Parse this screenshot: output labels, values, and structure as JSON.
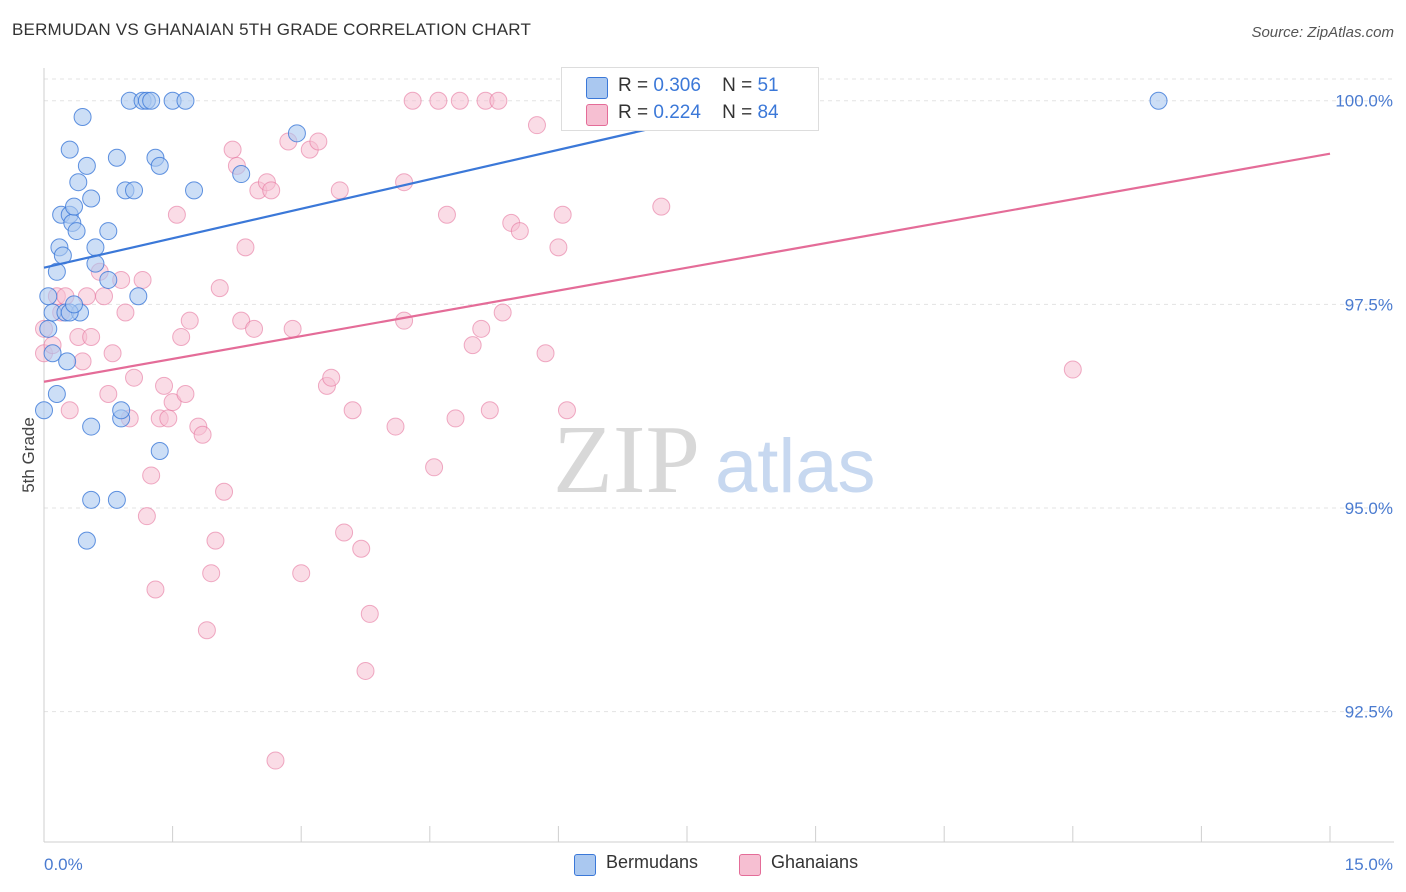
{
  "header": {
    "title": "BERMUDAN VS GHANAIAN 5TH GRADE CORRELATION CHART",
    "source": "Source: ZipAtlas.com"
  },
  "watermark": {
    "zip": "ZIP",
    "atlas": "atlas"
  },
  "colors": {
    "blue": "#3b78d8",
    "blue_fill": "#aac8f0",
    "pink": "#e46c98",
    "pink_fill": "#f6bfd2"
  },
  "stats_legend": [
    {
      "r_label": "R =",
      "r_value": "0.306",
      "n_label": "N =",
      "n_value": "51"
    },
    {
      "r_label": "R =",
      "r_value": "0.224",
      "n_label": "N =",
      "n_value": "84"
    }
  ],
  "chart_data": {
    "type": "scatter",
    "title": "BERMUDAN VS GHANAIAN 5TH GRADE CORRELATION CHART",
    "xlabel": "",
    "ylabel": "5th Grade",
    "xlim": [
      0,
      15
    ],
    "ylim": [
      90.9,
      100.5
    ],
    "x_tick_labels": [
      "0.0%",
      "15.0%"
    ],
    "y_ticks": [
      92.5,
      95.0,
      97.5,
      100.0
    ],
    "y_tick_labels": [
      "92.5%",
      "95.0%",
      "97.5%",
      "100.0%"
    ],
    "grid": true,
    "legend_position": "bottom",
    "series": [
      {
        "name": "Bermudans",
        "color": "#3b78d8",
        "trend": {
          "x": [
            0.0,
            8.5
          ],
          "y": [
            97.95,
            100.0
          ]
        },
        "points": [
          [
            0.05,
            97.6
          ],
          [
            0.05,
            97.2
          ],
          [
            0.1,
            97.4
          ],
          [
            0.1,
            96.9
          ],
          [
            0.15,
            97.9
          ],
          [
            0.15,
            96.4
          ],
          [
            0.18,
            98.2
          ],
          [
            0.2,
            98.6
          ],
          [
            0.22,
            98.1
          ],
          [
            0.25,
            97.4
          ],
          [
            0.27,
            96.8
          ],
          [
            0.3,
            99.4
          ],
          [
            0.3,
            98.6
          ],
          [
            0.33,
            98.5
          ],
          [
            0.35,
            98.7
          ],
          [
            0.38,
            98.4
          ],
          [
            0.4,
            99.0
          ],
          [
            0.42,
            97.4
          ],
          [
            0.45,
            99.8
          ],
          [
            0.5,
            99.2
          ],
          [
            0.55,
            98.8
          ],
          [
            0.6,
            98.2
          ],
          [
            0.6,
            98.0
          ],
          [
            0.75,
            98.4
          ],
          [
            0.75,
            97.8
          ],
          [
            0.85,
            99.3
          ],
          [
            0.9,
            96.1
          ],
          [
            0.95,
            98.9
          ],
          [
            1.0,
            100.0
          ],
          [
            1.05,
            98.9
          ],
          [
            1.1,
            97.6
          ],
          [
            1.15,
            100.0
          ],
          [
            1.2,
            100.0
          ],
          [
            1.25,
            100.0
          ],
          [
            1.3,
            99.3
          ],
          [
            1.35,
            99.2
          ],
          [
            1.35,
            95.7
          ],
          [
            1.5,
            100.0
          ],
          [
            1.65,
            100.0
          ],
          [
            1.75,
            98.9
          ],
          [
            2.3,
            99.1
          ],
          [
            2.95,
            99.6
          ],
          [
            0.55,
            96.0
          ],
          [
            0.9,
            96.2
          ],
          [
            0.5,
            94.6
          ],
          [
            0.55,
            95.1
          ],
          [
            0.85,
            95.1
          ],
          [
            0.0,
            96.2
          ],
          [
            0.3,
            97.4
          ],
          [
            0.35,
            97.5
          ],
          [
            13.0,
            100.0
          ]
        ]
      },
      {
        "name": "Ghanaians",
        "color": "#e46c98",
        "trend": {
          "x": [
            0.0,
            15.0
          ],
          "y": [
            96.55,
            99.35
          ]
        },
        "points": [
          [
            0.0,
            97.2
          ],
          [
            0.0,
            96.9
          ],
          [
            0.1,
            97.0
          ],
          [
            0.15,
            97.6
          ],
          [
            0.2,
            97.4
          ],
          [
            0.25,
            97.6
          ],
          [
            0.3,
            96.2
          ],
          [
            0.4,
            97.1
          ],
          [
            0.45,
            96.8
          ],
          [
            0.5,
            97.6
          ],
          [
            0.55,
            97.1
          ],
          [
            0.65,
            97.9
          ],
          [
            0.7,
            97.6
          ],
          [
            0.75,
            96.4
          ],
          [
            0.8,
            96.9
          ],
          [
            0.9,
            97.8
          ],
          [
            0.95,
            97.4
          ],
          [
            1.0,
            96.1
          ],
          [
            1.05,
            96.6
          ],
          [
            1.15,
            97.8
          ],
          [
            1.2,
            94.9
          ],
          [
            1.25,
            95.4
          ],
          [
            1.3,
            94.0
          ],
          [
            1.35,
            96.1
          ],
          [
            1.4,
            96.5
          ],
          [
            1.45,
            96.1
          ],
          [
            1.5,
            96.3
          ],
          [
            1.55,
            98.6
          ],
          [
            1.6,
            97.1
          ],
          [
            1.65,
            96.4
          ],
          [
            1.7,
            97.3
          ],
          [
            1.8,
            96.0
          ],
          [
            1.85,
            95.9
          ],
          [
            1.9,
            93.5
          ],
          [
            1.95,
            94.2
          ],
          [
            2.0,
            94.6
          ],
          [
            2.05,
            97.7
          ],
          [
            2.1,
            95.2
          ],
          [
            2.2,
            99.4
          ],
          [
            2.25,
            99.2
          ],
          [
            2.3,
            97.3
          ],
          [
            2.35,
            98.2
          ],
          [
            2.45,
            97.2
          ],
          [
            2.5,
            98.9
          ],
          [
            2.6,
            99.0
          ],
          [
            2.65,
            98.9
          ],
          [
            2.7,
            91.9
          ],
          [
            2.85,
            99.5
          ],
          [
            2.9,
            97.2
          ],
          [
            3.0,
            94.2
          ],
          [
            3.1,
            99.4
          ],
          [
            3.2,
            99.5
          ],
          [
            3.3,
            96.5
          ],
          [
            3.35,
            96.6
          ],
          [
            3.45,
            98.9
          ],
          [
            3.5,
            94.7
          ],
          [
            3.6,
            96.2
          ],
          [
            3.7,
            94.5
          ],
          [
            3.75,
            93.0
          ],
          [
            3.8,
            93.7
          ],
          [
            4.1,
            96.0
          ],
          [
            4.2,
            97.3
          ],
          [
            4.2,
            99.0
          ],
          [
            4.3,
            100.0
          ],
          [
            4.55,
            95.5
          ],
          [
            4.6,
            100.0
          ],
          [
            4.7,
            98.6
          ],
          [
            4.8,
            96.1
          ],
          [
            4.85,
            100.0
          ],
          [
            5.0,
            97.0
          ],
          [
            5.1,
            97.2
          ],
          [
            5.15,
            100.0
          ],
          [
            5.2,
            96.2
          ],
          [
            5.3,
            100.0
          ],
          [
            5.35,
            97.4
          ],
          [
            5.45,
            98.5
          ],
          [
            5.55,
            98.4
          ],
          [
            5.75,
            99.7
          ],
          [
            5.85,
            96.9
          ],
          [
            6.0,
            98.2
          ],
          [
            6.05,
            98.6
          ],
          [
            6.1,
            96.2
          ],
          [
            7.2,
            98.7
          ],
          [
            12.0,
            96.7
          ]
        ]
      }
    ]
  },
  "bottom_legend": [
    {
      "label": "Bermudans"
    },
    {
      "label": "Ghanaians"
    }
  ]
}
